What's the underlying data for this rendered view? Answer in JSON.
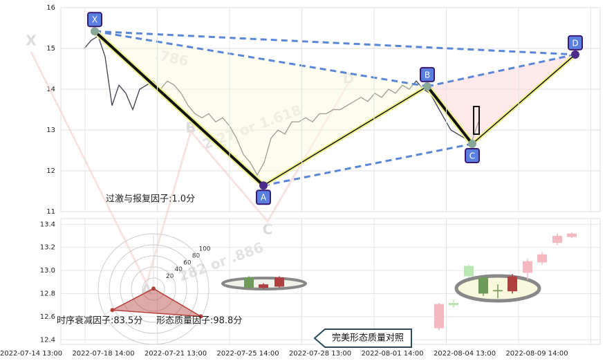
{
  "chart_data": [
    {
      "type": "line",
      "ylim": [
        11,
        16
      ],
      "yticks": [
        11,
        12,
        13,
        14,
        15,
        16
      ],
      "grid": true,
      "series": [
        {
          "color": "#4a4a55",
          "values": [
            15.0,
            15.2,
            15.3,
            14.8,
            13.6,
            14.1,
            13.9,
            13.5,
            14.0,
            14.1,
            14.2,
            14.0,
            14.2,
            14.1,
            13.9,
            13.6,
            13.4,
            13.3,
            13.4,
            13.2,
            13.3,
            13.1,
            12.8,
            12.4,
            12.2,
            11.9,
            12.2,
            12.8,
            13.0,
            12.9,
            13.2,
            13.2,
            13.3,
            13.2,
            13.4,
            13.4,
            13.5,
            13.5,
            13.6,
            13.7,
            13.8,
            13.7,
            13.9,
            13.8,
            14.0,
            13.9,
            14.1,
            14.0,
            14.2,
            14.0,
            13.9,
            13.6,
            13.3,
            13.0,
            12.9,
            12.8,
            12.7,
            13.2
          ]
        }
      ],
      "pattern": {
        "labels": [
          "X",
          "A",
          "B",
          "C",
          "D"
        ],
        "values": [
          15.42,
          11.64,
          14.07,
          12.66,
          14.85
        ]
      },
      "annotations": [
        ".786",
        "2.27 or 1.618",
        "282 or .886"
      ],
      "ghost_labels": [
        "X",
        "B",
        "D",
        "C",
        "A"
      ]
    },
    {
      "type": "candlestick",
      "ylim": [
        12.36,
        13.45
      ],
      "yticks": [
        12.4,
        12.6,
        12.8,
        {
          "value": 13,
          "label": "13.0"
        },
        13.2,
        13.4
      ],
      "xtick_labels": [
        "2022-07-14 13:00",
        "2022-07-18 14:00",
        "2022-07-21 13:00",
        "2022-07-25 14:00",
        "2022-07-28 13:00",
        "2022-08-01 14:00",
        "2022-08-04 13:00",
        "2022-08-09 14:00"
      ],
      "open": [
        12.94,
        12.85,
        12.86,
        12.5,
        12.72,
        13.04,
        12.94,
        12.83,
        12.82,
        12.98,
        13.07,
        13.24,
        13.29
      ],
      "close": [
        12.85,
        12.88,
        12.94,
        12.71,
        12.7,
        12.95,
        12.8,
        12.82,
        12.95,
        13.08,
        13.14,
        13.3,
        13.32
      ],
      "high": [
        12.95,
        12.89,
        12.95,
        12.72,
        12.75,
        13.05,
        12.95,
        12.88,
        12.97,
        13.1,
        13.16,
        13.32,
        13.33
      ],
      "low": [
        12.84,
        12.84,
        12.85,
        12.48,
        12.68,
        12.94,
        12.78,
        12.76,
        12.8,
        12.92,
        13.05,
        13.22,
        13.28
      ],
      "colors": [
        "#6f9a5a",
        "#b04040",
        "#b04040",
        "#f4b8c0",
        "#b8e0b0",
        "#b8e8b0",
        "#6f9a5a",
        "#6f9a5a",
        "#b04040",
        "#f4b8c0",
        "#f4b8c0",
        "#f4b8c0",
        "#f4b8c0"
      ]
    },
    {
      "type": "radar",
      "values": [
        1.0,
        83.5,
        98.8
      ],
      "value_labels": [
        "过激与报复因子:1.0分",
        "时序衰减因子:83.5分",
        "形态质量因子:98.8分"
      ],
      "rlim": [
        0,
        100
      ],
      "rticks": [
        20,
        40,
        60,
        80,
        100
      ],
      "color": "#b5403a"
    }
  ],
  "button": "完美形态质量对照"
}
